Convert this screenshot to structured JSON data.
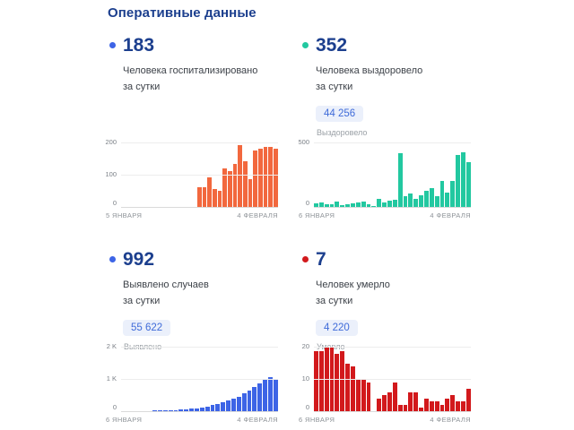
{
  "page_title": "Оперативные данные",
  "colors": {
    "heading_navy": "#1c3f8e",
    "badge_bg": "#ebf0fb",
    "badge_text": "#3f6bd9",
    "hospitalized_bars": "#f2683e",
    "recovered_bars": "#22c8a0",
    "detected_bars": "#3d64e6",
    "deaths_bars": "#d2191c"
  },
  "panels": [
    {
      "stat": "183",
      "label_line1": "Человека госпитализировано",
      "label_line2": "за сутки",
      "accent": "#3d64e6",
      "total": null,
      "total_caption": null
    },
    {
      "stat": "352",
      "label_line1": "Человека выздоровело",
      "label_line2": "за сутки",
      "accent": "#22c8a0",
      "total": "44 256",
      "total_caption": "Выздоровело"
    },
    {
      "stat": "992",
      "label_line1": "Выявлено случаев",
      "label_line2": "за сутки",
      "accent": "#3d64e6",
      "total": "55 622",
      "total_caption": "Выявлено"
    },
    {
      "stat": "7",
      "label_line1": "Человек умерло",
      "label_line2": "за сутки",
      "accent": "#d2191c",
      "total": "4 220",
      "total_caption": "Умерло"
    }
  ],
  "chart_data": [
    {
      "type": "bar",
      "title": "Человека госпитализировано за сутки",
      "color": "#f2683e",
      "x_start_label": "5 ЯНВАРЯ",
      "x_end_label": "4 ФЕВРАЛЯ",
      "yticks": [
        0,
        100,
        200
      ],
      "ytick_labels": [
        "0",
        "100",
        "200"
      ],
      "ymax": 220,
      "grid": true,
      "legend": false,
      "values": [
        0,
        0,
        0,
        0,
        0,
        0,
        0,
        0,
        0,
        0,
        0,
        0,
        0,
        0,
        0,
        62,
        62,
        92,
        57,
        50,
        121,
        114,
        136,
        195,
        145,
        88,
        178,
        183,
        188,
        190,
        183
      ]
    },
    {
      "type": "bar",
      "title": "Человека выздоровело за сутки",
      "color": "#22c8a0",
      "x_start_label": "6 ЯНВАРЯ",
      "x_end_label": "4 ФЕВРАЛЯ",
      "yticks": [
        0,
        500
      ],
      "ytick_labels": [
        "0",
        "500"
      ],
      "ymax": 550,
      "grid": true,
      "legend": false,
      "values": [
        28,
        33,
        23,
        19,
        45,
        14,
        23,
        28,
        33,
        42,
        23,
        9,
        66,
        37,
        52,
        57,
        421,
        84,
        103,
        61,
        94,
        126,
        150,
        84,
        201,
        112,
        205,
        410,
        430,
        352
      ]
    },
    {
      "type": "bar",
      "title": "Выявлено случаев за сутки",
      "color": "#3d64e6",
      "x_start_label": "6 ЯНВАРЯ",
      "x_end_label": "4 ФЕВРАЛЯ",
      "yticks": [
        0,
        1000,
        2000
      ],
      "ytick_labels": [
        "0",
        "1 K",
        "2 K"
      ],
      "ymax": 2200,
      "grid": true,
      "legend": false,
      "values": [
        5,
        6,
        7,
        8,
        10,
        12,
        15,
        19,
        24,
        30,
        38,
        48,
        61,
        77,
        97,
        122,
        150,
        185,
        225,
        270,
        325,
        390,
        465,
        550,
        650,
        760,
        880,
        1000,
        1060,
        992
      ]
    },
    {
      "type": "bar",
      "title": "Человек умерло за сутки",
      "color": "#d2191c",
      "x_start_label": "6 ЯНВАРЯ",
      "x_end_label": "4 ФЕВРАЛЯ",
      "yticks": [
        0,
        10,
        20
      ],
      "ytick_labels": [
        "0",
        "10",
        "20"
      ],
      "ymax": 22,
      "grid": true,
      "legend": false,
      "values": [
        19,
        19,
        20,
        20,
        18,
        19,
        15,
        14,
        10,
        10,
        9,
        0,
        4,
        5,
        6,
        9,
        2,
        2,
        6,
        6,
        1,
        4,
        3,
        3,
        2,
        4,
        5,
        3,
        3,
        7
      ]
    }
  ]
}
